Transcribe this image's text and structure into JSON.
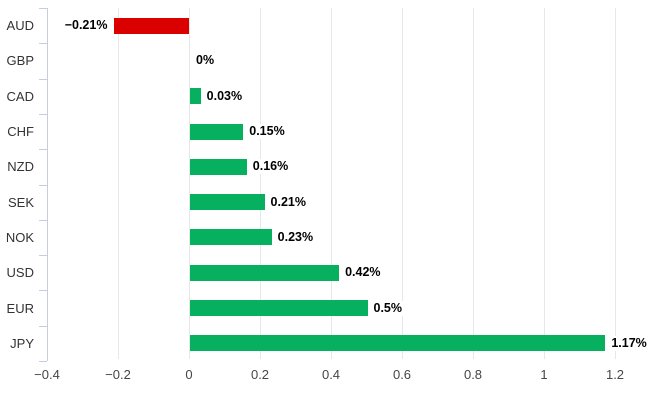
{
  "chart_data": {
    "type": "bar",
    "orientation": "horizontal",
    "title": "",
    "xlabel": "",
    "ylabel": "",
    "categories": [
      "AUD",
      "GBP",
      "CAD",
      "CHF",
      "NZD",
      "SEK",
      "NOK",
      "USD",
      "EUR",
      "JPY"
    ],
    "values": [
      -0.21,
      0,
      0.03,
      0.15,
      0.16,
      0.21,
      0.23,
      0.42,
      0.5,
      1.17
    ],
    "value_labels": [
      "−0.21%",
      "0%",
      "0.03%",
      "0.15%",
      "0.16%",
      "0.21%",
      "0.23%",
      "0.42%",
      "0.5%",
      "1.17%"
    ],
    "xlim": [
      -0.4,
      1.2
    ],
    "x_ticks": [
      -0.4,
      -0.2,
      0,
      0.2,
      0.4,
      0.6,
      0.8,
      1,
      1.2
    ],
    "x_tick_labels": [
      "−0.4",
      "−0.2",
      "0",
      "0.2",
      "0.4",
      "0.6",
      "0.8",
      "1",
      "1.2"
    ],
    "grid": "vertical-only",
    "legend": "none",
    "colors": {
      "positive_bar": "#06b05e",
      "negative_bar": "#da0000",
      "gridline": "#e7e7e7",
      "axis_line": "#c5cdde",
      "category_label": "#333333",
      "tick_label": "#464646",
      "value_label": "#000000",
      "background": "#ffffff"
    }
  }
}
